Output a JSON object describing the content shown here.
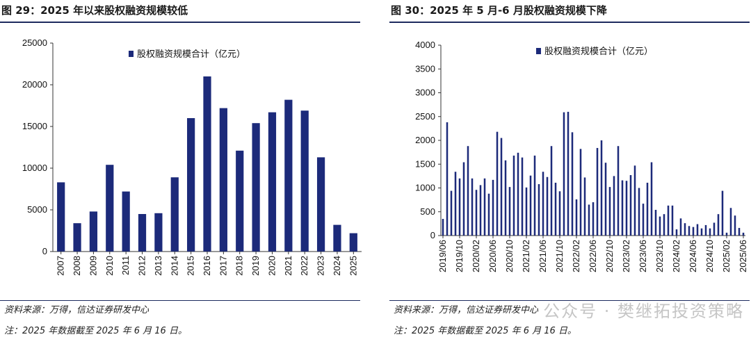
{
  "colors": {
    "bar": "#1c2a7a",
    "rule": "#1c2a5e"
  },
  "panels": [
    {
      "title": "图 29：2025 年以来股权融资规模较低",
      "source": "资料来源：万得，信达证券研发中心",
      "note": "注：2025 年数据截至 2025 年 6 月 16 日。"
    },
    {
      "title": "图 30：2025 年 5 月-6 月股权融资规模下降",
      "source": "资料来源：万得，信达证券研发中心",
      "note": "注：2025 年数据截至 2025 年 6 月 16 日。"
    }
  ],
  "watermark": "公众号 · 樊继拓投资策略",
  "chart_data": [
    {
      "type": "bar",
      "legend": "股权融资规模合计（亿元）",
      "ylim": [
        0,
        25000
      ],
      "yticks": [
        0,
        5000,
        10000,
        15000,
        20000,
        25000
      ],
      "categories": [
        "2007",
        "2008",
        "2009",
        "2010",
        "2011",
        "2012",
        "2013",
        "2014",
        "2015",
        "2016",
        "2017",
        "2018",
        "2019",
        "2020",
        "2021",
        "2022",
        "2023",
        "2024",
        "2025"
      ],
      "values": [
        8300,
        3400,
        4800,
        10400,
        7200,
        4500,
        4600,
        8900,
        16000,
        21000,
        17200,
        12100,
        15400,
        16700,
        18200,
        16900,
        11300,
        3200,
        2200
      ]
    },
    {
      "type": "bar",
      "legend": "股权融资规模合计（亿元）",
      "ylim": [
        0,
        4000
      ],
      "yticks": [
        0,
        500,
        1000,
        1500,
        2000,
        2500,
        3000,
        3500,
        4000
      ],
      "tick_labels": [
        "2019/06",
        "2019/10",
        "2020/02",
        "2020/06",
        "2020/10",
        "2021/02",
        "2021/06",
        "2021/10",
        "2022/02",
        "2022/06",
        "2022/10",
        "2023/02",
        "2023/06",
        "2023/10",
        "2024/02",
        "2024/06",
        "2024/10",
        "2025/02",
        "2025/06"
      ],
      "categories": [
        "2019/06",
        "2019/07",
        "2019/08",
        "2019/09",
        "2019/10",
        "2019/11",
        "2019/12",
        "2020/01",
        "2020/02",
        "2020/03",
        "2020/04",
        "2020/05",
        "2020/06",
        "2020/07",
        "2020/08",
        "2020/09",
        "2020/10",
        "2020/11",
        "2020/12",
        "2021/01",
        "2021/02",
        "2021/03",
        "2021/04",
        "2021/05",
        "2021/06",
        "2021/07",
        "2021/08",
        "2021/09",
        "2021/10",
        "2021/11",
        "2021/12",
        "2022/01",
        "2022/02",
        "2022/03",
        "2022/04",
        "2022/05",
        "2022/06",
        "2022/07",
        "2022/08",
        "2022/09",
        "2022/10",
        "2022/11",
        "2022/12",
        "2023/01",
        "2023/02",
        "2023/03",
        "2023/04",
        "2023/05",
        "2023/06",
        "2023/07",
        "2023/08",
        "2023/09",
        "2023/10",
        "2023/11",
        "2023/12",
        "2024/01",
        "2024/02",
        "2024/03",
        "2024/04",
        "2024/05",
        "2024/06",
        "2024/07",
        "2024/08",
        "2024/09",
        "2024/10",
        "2024/11",
        "2024/12",
        "2025/01",
        "2025/02",
        "2025/03",
        "2025/04",
        "2025/05",
        "2025/06"
      ],
      "values": [
        350,
        2380,
        940,
        1340,
        1200,
        1540,
        1880,
        1200,
        960,
        1060,
        1200,
        880,
        1170,
        2180,
        2050,
        1580,
        1020,
        1680,
        1740,
        1640,
        1010,
        1260,
        1680,
        1080,
        1340,
        1230,
        1880,
        1110,
        930,
        2590,
        2600,
        2170,
        760,
        1820,
        1220,
        650,
        700,
        1840,
        2000,
        1530,
        1020,
        1250,
        1880,
        1160,
        1150,
        1270,
        1470,
        1000,
        670,
        1110,
        1540,
        540,
        400,
        450,
        630,
        630,
        130,
        360,
        260,
        200,
        180,
        240,
        150,
        220,
        150,
        270,
        450,
        940,
        60,
        580,
        420,
        160,
        60
      ]
    }
  ]
}
